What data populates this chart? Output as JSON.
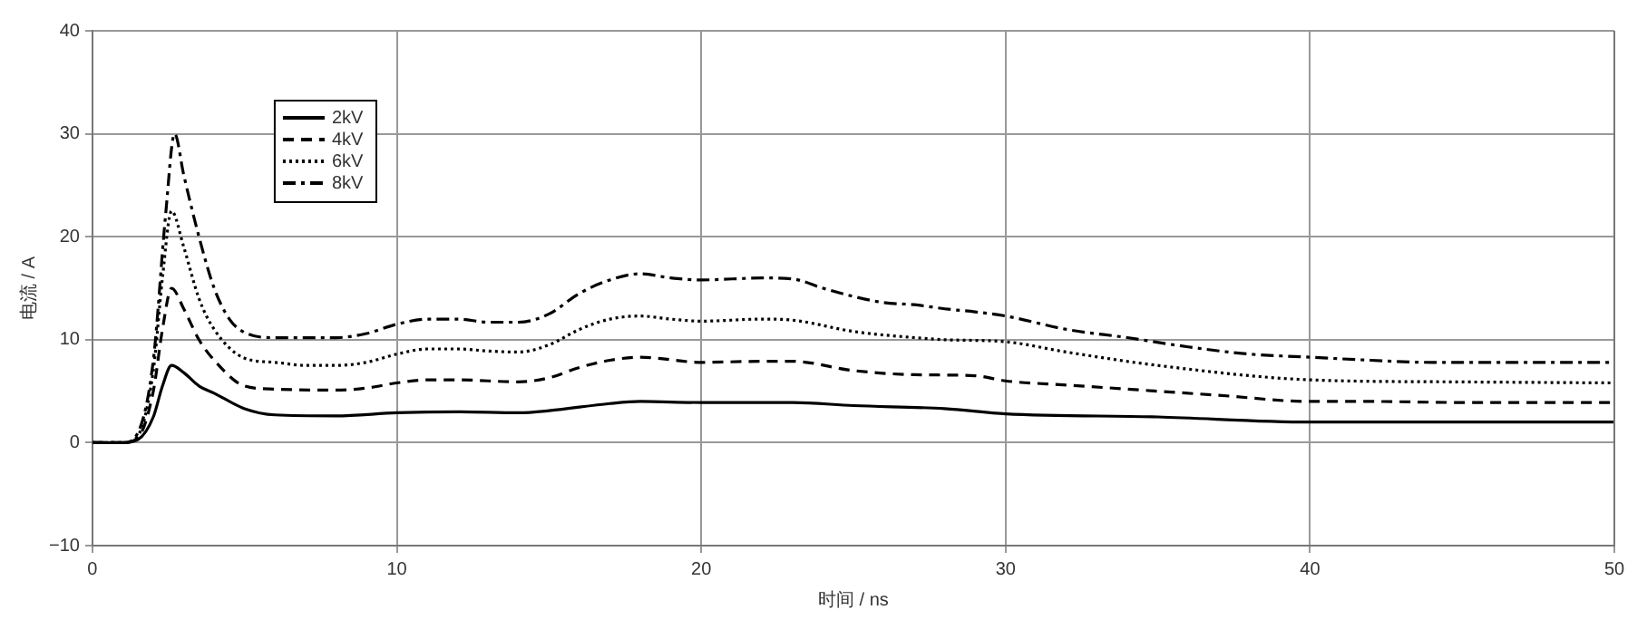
{
  "chart_data": {
    "type": "line",
    "xlabel": "时间 / ns",
    "ylabel": "电流 / A",
    "xlim": [
      0,
      50
    ],
    "xticks": [
      0,
      10,
      20,
      30,
      40,
      50
    ],
    "ylim": [
      -10,
      40
    ],
    "yticks": [
      -10,
      0,
      10,
      20,
      30,
      40
    ],
    "grid": true,
    "legend": "top left",
    "marker": "none",
    "series": [
      {
        "name": "2kV",
        "color": "#000000",
        "line_style": "solid",
        "x": [
          0,
          1,
          1.5,
          2,
          2.3,
          2.6,
          3,
          3.5,
          4,
          5,
          6,
          8,
          10,
          12,
          14,
          15,
          17,
          18,
          20,
          23,
          25,
          28,
          30,
          35,
          40,
          45,
          50
        ],
        "values": [
          0,
          0,
          0.3,
          2.5,
          5.5,
          7.5,
          6.8,
          5.5,
          4.8,
          3.3,
          2.7,
          2.6,
          2.9,
          3.0,
          2.9,
          3.1,
          3.8,
          4.0,
          3.9,
          3.9,
          3.6,
          3.3,
          2.8,
          2.5,
          2.0,
          2.0,
          2.0
        ]
      },
      {
        "name": "4kV",
        "color": "#000000",
        "line_style": "dashed",
        "x": [
          0,
          1,
          1.5,
          2,
          2.3,
          2.6,
          3,
          3.5,
          4,
          5,
          6,
          8,
          9,
          10,
          11,
          12,
          14,
          15,
          16,
          17,
          18,
          20,
          22,
          23,
          25,
          27,
          29,
          30,
          32,
          35,
          37,
          40,
          42,
          45,
          48,
          50
        ],
        "values": [
          0,
          0,
          0.5,
          5,
          11,
          15,
          13,
          10,
          8,
          5.5,
          5.2,
          5.1,
          5.3,
          5.8,
          6.1,
          6.1,
          5.9,
          6.3,
          7.3,
          8,
          8.3,
          7.8,
          7.9,
          7.9,
          7,
          6.6,
          6.5,
          6,
          5.6,
          5,
          4.6,
          4.0,
          4.0,
          3.9,
          3.9,
          3.9
        ]
      },
      {
        "name": "6kV",
        "color": "#000000",
        "line_style": "dotted",
        "x": [
          0,
          1,
          1.5,
          2,
          2.3,
          2.6,
          3,
          3.5,
          4,
          5,
          6,
          7,
          8,
          9,
          10,
          11,
          12,
          13,
          14,
          15,
          16,
          17,
          18,
          19,
          20,
          22,
          23,
          25,
          27,
          28,
          30,
          32,
          35,
          40,
          45,
          50
        ],
        "values": [
          0,
          0,
          0.7,
          7,
          16,
          22.5,
          19,
          14,
          11,
          8.2,
          7.8,
          7.5,
          7.5,
          7.8,
          8.6,
          9.1,
          9.1,
          8.9,
          8.8,
          9.5,
          11,
          12,
          12.3,
          12,
          11.8,
          12,
          11.9,
          10.8,
          10.2,
          10,
          9.8,
          8.8,
          7.5,
          6.1,
          5.9,
          5.8
        ]
      },
      {
        "name": "8kV",
        "color": "#000000",
        "line_style": "dashdot",
        "x": [
          0,
          1,
          1.5,
          2,
          2.4,
          2.7,
          3,
          3.5,
          4,
          4.5,
          5,
          6,
          8,
          9,
          10,
          11,
          12,
          13,
          14,
          15,
          16,
          17,
          18,
          19,
          20,
          21,
          22,
          23,
          24,
          25,
          26,
          27,
          28,
          29,
          30,
          32,
          34,
          36,
          38,
          40,
          42,
          44,
          46,
          48,
          50
        ],
        "values": [
          0,
          0,
          1,
          8,
          22,
          30,
          26,
          20,
          15,
          12,
          10.7,
          10.2,
          10.2,
          10.6,
          11.5,
          12,
          12,
          11.7,
          11.7,
          12.5,
          14.5,
          15.8,
          16.4,
          16,
          15.8,
          15.9,
          16,
          15.9,
          15,
          14.2,
          13.6,
          13.4,
          13,
          12.7,
          12.3,
          11,
          10.2,
          9.3,
          8.6,
          8.3,
          8.0,
          7.8,
          7.8,
          7.8,
          7.8
        ]
      }
    ]
  }
}
